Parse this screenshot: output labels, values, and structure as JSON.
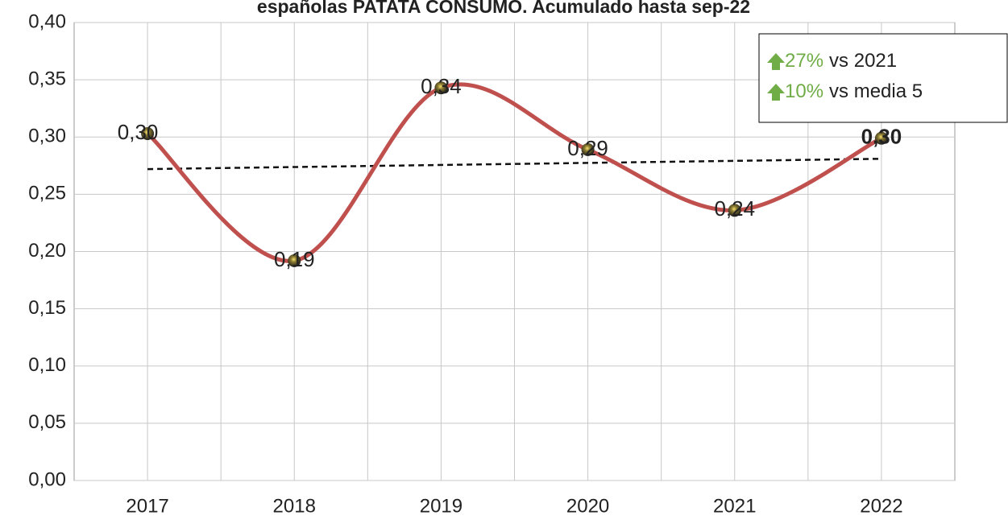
{
  "chart_data": {
    "type": "line",
    "title": "españolas PATATA CONSUMO. Acumulado hasta sep-22",
    "categories": [
      "2017",
      "2018",
      "2019",
      "2020",
      "2021",
      "2022"
    ],
    "series": [
      {
        "color": "#c0504d",
        "values": [
          0.303,
          0.192,
          0.343,
          0.289,
          0.236,
          0.299
        ],
        "value_labels": [
          "0,30",
          "0,19",
          "0,34",
          "0,29",
          "0,24",
          "0,30"
        ]
      }
    ],
    "trendline": [
      0.272,
      0.281
    ],
    "ylim": [
      0,
      0.4
    ],
    "yticks": [
      {
        "value": 0,
        "label": "0,00"
      },
      {
        "value": 0.05,
        "label": "0,05"
      },
      {
        "value": 0.1,
        "label": "0,10"
      },
      {
        "value": 0.15,
        "label": "0,15"
      },
      {
        "value": 0.2,
        "label": "0,20"
      },
      {
        "value": 0.25,
        "label": "0,25"
      },
      {
        "value": 0.3,
        "label": "0,30"
      },
      {
        "value": 0.35,
        "label": "0,35"
      },
      {
        "value": 0.4,
        "label": "0,40"
      }
    ],
    "grid": true,
    "annotations": [
      {
        "value": "27%",
        "text": "vs 2021"
      },
      {
        "value": "10%",
        "text": "vs media 5"
      }
    ]
  }
}
